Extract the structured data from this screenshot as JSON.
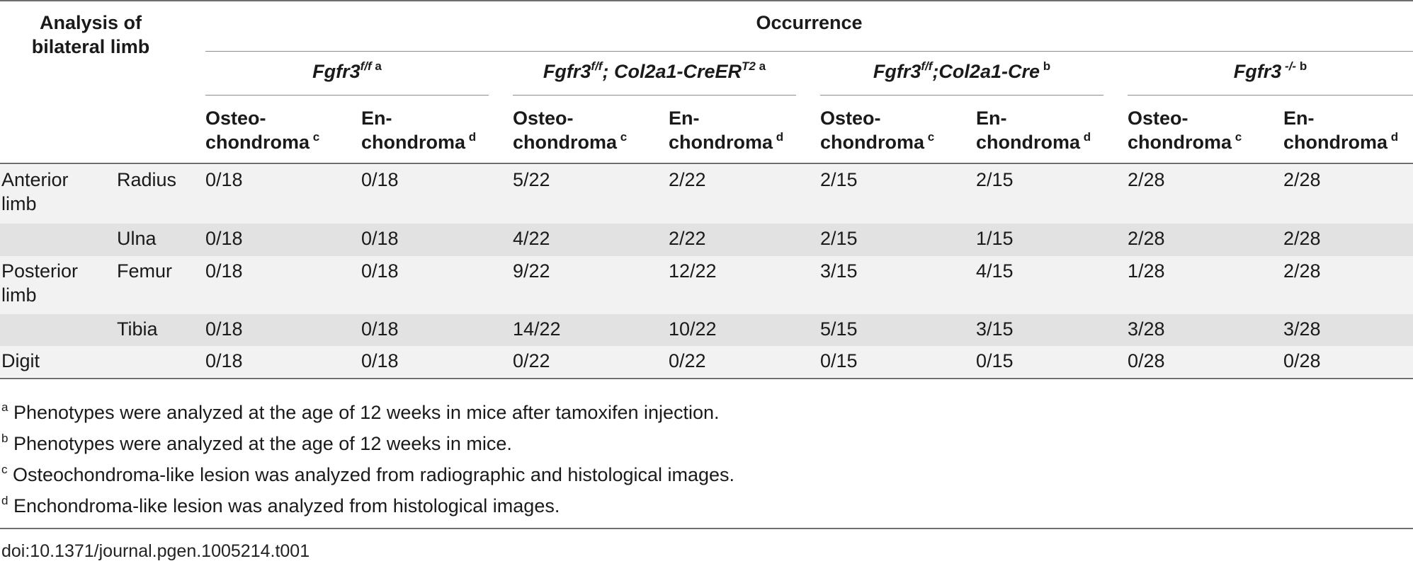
{
  "table": {
    "header": {
      "corner_label_line1": "Analysis of",
      "corner_label_line2": "bilateral limb",
      "occurrence_label": "Occurrence",
      "groups": [
        {
          "pre": "Fgfr3",
          "sup1": "f/f",
          "mid": "",
          "sup2": "",
          "post_bold": "",
          "note": "a"
        },
        {
          "pre": "Fgfr3",
          "sup1": "f/f",
          "mid": "; Col2a1-CreER",
          "sup2": "T2",
          "post_bold": "",
          "note": "a"
        },
        {
          "pre": "Fgfr3",
          "sup1": "f/f",
          "mid": ";Col2a1-Cre",
          "sup2": "",
          "post_bold": "",
          "note": "b"
        },
        {
          "pre": "Fgfr3",
          "sup1": "-/-",
          "mid": "",
          "sup2": "",
          "post_bold": "",
          "note": "b"
        }
      ],
      "sub_osteo_line1": "Osteo-",
      "sub_osteo_line2": "chondroma",
      "sub_osteo_note": "c",
      "sub_en_line1": "En-",
      "sub_en_line2": "chondroma",
      "sub_en_note": "d"
    },
    "rows": [
      {
        "region_line1": "Anterior",
        "region_line2": "limb",
        "bone": "Radius",
        "values": [
          "0/18",
          "0/18",
          "5/22",
          "2/22",
          "2/15",
          "2/15",
          "2/28",
          "2/28"
        ]
      },
      {
        "region_line1": "",
        "region_line2": "",
        "bone": "Ulna",
        "values": [
          "0/18",
          "0/18",
          "4/22",
          "2/22",
          "2/15",
          "1/15",
          "2/28",
          "2/28"
        ]
      },
      {
        "region_line1": "Posterior",
        "region_line2": "limb",
        "bone": "Femur",
        "values": [
          "0/18",
          "0/18",
          "9/22",
          "12/22",
          "3/15",
          "4/15",
          "1/28",
          "2/28"
        ]
      },
      {
        "region_line1": "",
        "region_line2": "",
        "bone": "Tibia",
        "values": [
          "0/18",
          "0/18",
          "14/22",
          "10/22",
          "5/15",
          "3/15",
          "3/28",
          "3/28"
        ]
      },
      {
        "region_line1": "Digit",
        "region_line2": "",
        "bone": "",
        "values": [
          "0/18",
          "0/18",
          "0/22",
          "0/22",
          "0/15",
          "0/15",
          "0/28",
          "0/28"
        ]
      }
    ]
  },
  "footnotes": [
    {
      "mark": "a",
      "text": " Phenotypes were analyzed at the age of 12 weeks in mice after tamoxifen injection."
    },
    {
      "mark": "b",
      "text": " Phenotypes were analyzed at the age of 12 weeks in mice."
    },
    {
      "mark": "c",
      "text": " Osteochondroma-like lesion was analyzed from radiographic and histological images."
    },
    {
      "mark": "d",
      "text": " Enchondroma-like lesion was analyzed from histological images."
    }
  ],
  "doi": "doi:10.1371/journal.pgen.1005214.t001",
  "colors": {
    "band_light": "#f2f2f2",
    "band_dark": "#e2e2e2",
    "rule": "#6f6f6f",
    "text": "#1a1a1a"
  }
}
